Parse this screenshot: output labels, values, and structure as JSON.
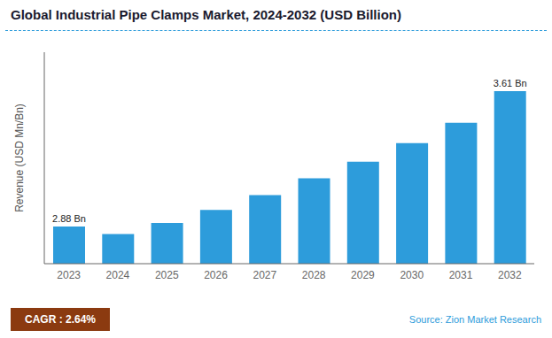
{
  "chart_data": {
    "type": "bar",
    "title": "Global Industrial Pipe Clamps Market, 2024-2032 (USD Billion)",
    "categories": [
      "2023",
      "2024",
      "2025",
      "2026",
      "2027",
      "2028",
      "2029",
      "2030",
      "2031",
      "2032"
    ],
    "values": [
      2.88,
      2.84,
      2.9,
      2.97,
      3.05,
      3.14,
      3.23,
      3.33,
      3.44,
      3.61
    ],
    "value_labels": [
      "2.88 Bn",
      null,
      null,
      null,
      null,
      null,
      null,
      null,
      null,
      "3.61 Bn"
    ],
    "data_labels": true,
    "color": "#2D9CDB",
    "ylabel": "Revenue (USD Mn/Bn)",
    "ylim": [
      2.68,
      3.82
    ],
    "yticks": [],
    "tick_labels": "x",
    "grid": false,
    "annotations": [
      {
        "text": "CAGR : 2.64%",
        "color": "#8B3A10"
      },
      {
        "text": "Source: Zion Market Research",
        "color": "#2D9CDB"
      }
    ]
  }
}
